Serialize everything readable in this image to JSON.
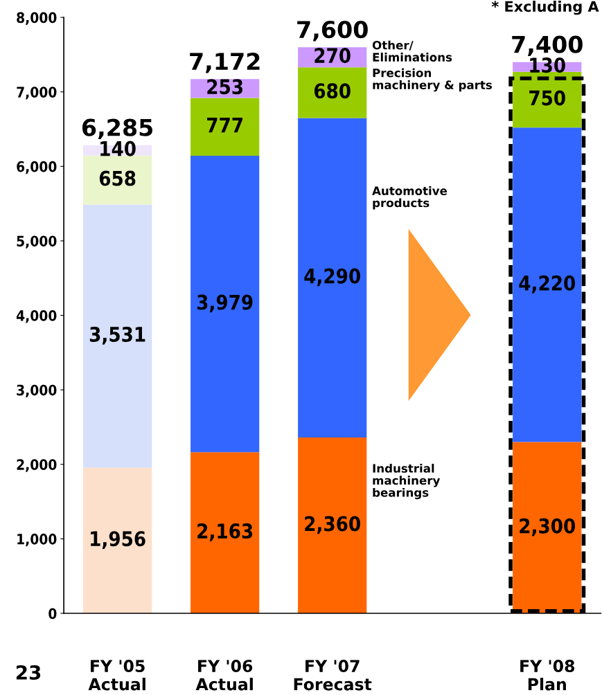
{
  "chart_data": {
    "type": "bar",
    "stacked": true,
    "categories": [
      "FY '05\nActual",
      "FY '06\nActual",
      "FY '07\nForecast",
      null,
      "FY '08\nPlan"
    ],
    "series": [
      {
        "name": "Industrial\nmachinery\nbearings",
        "colors": [
          "#fde0cc",
          "#ff6600",
          "#ff6600",
          "#ff6600",
          "#ff6600"
        ],
        "values": [
          1956,
          2163,
          2360,
          null,
          2300
        ],
        "value_labels": [
          "1,956",
          "2,163",
          "2,360",
          null,
          "2,300"
        ]
      },
      {
        "name": "Automotive\nproducts",
        "colors": [
          "#d6e0fa",
          "#3366ff",
          "#3366ff",
          "#3366ff",
          "#3366ff"
        ],
        "values": [
          3531,
          3979,
          4290,
          null,
          4220
        ],
        "value_labels": [
          "3,531",
          "3,979",
          "4,290",
          null,
          "4,220"
        ]
      },
      {
        "name": "Precision\nmachinery & parts",
        "colors": [
          "#eaf5cc",
          "#99cc00",
          "#99cc00",
          "#99cc00",
          "#99cc00"
        ],
        "values": [
          658,
          777,
          680,
          null,
          750
        ],
        "value_labels": [
          "658",
          "777",
          "680",
          null,
          "750"
        ]
      },
      {
        "name": "Other/\nEliminations",
        "colors": [
          "#eee5fa",
          "#cc99ff",
          "#cc99ff",
          "#cc99ff",
          "#cc99ff"
        ],
        "values": [
          140,
          253,
          270,
          null,
          130
        ],
        "value_labels": [
          "140",
          "253",
          "270",
          null,
          "130"
        ]
      }
    ],
    "totals": [
      "6,285",
      "7,172",
      "7,600",
      null,
      "7,400"
    ],
    "ylim": [
      0,
      8000
    ],
    "yticks": [
      {
        "value": 0,
        "label": "0"
      },
      {
        "value": 1000,
        "label": "1,000"
      },
      {
        "value": 2000,
        "label": "2,000"
      },
      {
        "value": 3000,
        "label": "3,000"
      },
      {
        "value": 4000,
        "label": "4,000"
      },
      {
        "value": 5000,
        "label": "5,000"
      },
      {
        "value": 6000,
        "label": "6,000"
      },
      {
        "value": 7000,
        "label": "7,000"
      },
      {
        "value": 8000,
        "label": "8,000"
      }
    ],
    "grid": false,
    "annotations": [
      "* Excluding A",
      "23"
    ]
  }
}
